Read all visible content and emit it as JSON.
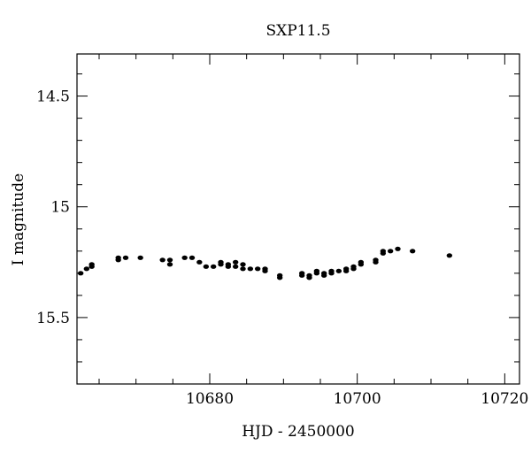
{
  "chart_data": {
    "type": "scatter",
    "title": "SXP11.5",
    "xlabel": "HJD - 2450000",
    "ylabel": "I magnitude",
    "xlim": [
      10662,
      10722
    ],
    "ylim": [
      15.8,
      14.31
    ],
    "y_inverted": true,
    "grid": false,
    "legend": "none",
    "point_color": "#000000",
    "x_ticks": [
      10680,
      10700,
      10720
    ],
    "x_tick_labels": [
      "10680",
      "10700",
      "10720"
    ],
    "y_ticks": [
      14.5,
      15,
      15.5
    ],
    "y_tick_labels": [
      "14.5",
      "15",
      "15.5"
    ],
    "series": [
      {
        "x": [
          10662.5,
          10663.3,
          10664.0,
          10664.0,
          10667.6,
          10667.6,
          10668.6,
          10670.6,
          10673.6,
          10674.6,
          10674.6,
          10676.6,
          10677.6,
          10678.6,
          10679.5,
          10680.5,
          10681.5,
          10681.5,
          10682.5,
          10682.5,
          10683.5,
          10683.5,
          10684.5,
          10684.5,
          10685.5,
          10686.5,
          10687.5,
          10687.5,
          10689.5,
          10689.5,
          10692.5,
          10692.5,
          10693.5,
          10693.5,
          10694.5,
          10694.5,
          10695.5,
          10695.5,
          10696.5,
          10696.5,
          10697.5,
          10698.5,
          10698.5,
          10699.5,
          10699.5,
          10700.5,
          10700.5,
          10702.5,
          10702.5,
          10703.5,
          10703.5,
          10704.5,
          10705.5,
          10707.5,
          10712.5
        ],
        "y": [
          15.3,
          15.28,
          15.27,
          15.26,
          15.24,
          15.23,
          15.23,
          15.23,
          15.24,
          15.24,
          15.26,
          15.23,
          15.23,
          15.25,
          15.27,
          15.27,
          15.25,
          15.26,
          15.26,
          15.27,
          15.25,
          15.27,
          15.26,
          15.28,
          15.28,
          15.28,
          15.28,
          15.29,
          15.31,
          15.32,
          15.3,
          15.31,
          15.31,
          15.32,
          15.29,
          15.3,
          15.3,
          15.31,
          15.29,
          15.3,
          15.29,
          15.28,
          15.29,
          15.28,
          15.27,
          15.26,
          15.25,
          15.25,
          15.24,
          15.21,
          15.2,
          15.2,
          15.19,
          15.2,
          15.22
        ]
      }
    ]
  }
}
